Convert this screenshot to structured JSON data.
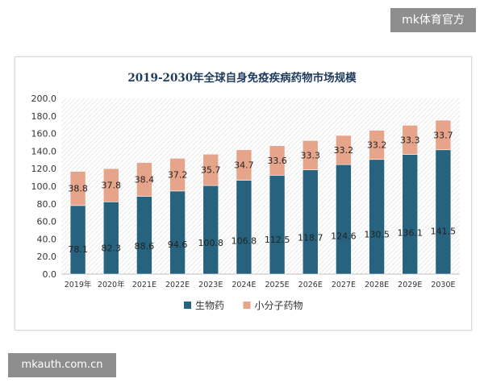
{
  "watermark_top": "mk体育官方",
  "watermark_bottom": "mkauth.com.cn",
  "chart_data": {
    "type": "bar",
    "stacked": true,
    "title": "2019-2030年全球自身免疫疾病药物市场规模",
    "xlabel": "",
    "ylabel": "",
    "categories": [
      "2019年",
      "2020年",
      "2021E",
      "2022E",
      "2023E",
      "2024E",
      "2025E",
      "2026E",
      "2027E",
      "2028E",
      "2029E",
      "2030E"
    ],
    "series": [
      {
        "name": "生物药",
        "color": "#27637e",
        "values": [
          78.1,
          82.3,
          88.6,
          94.6,
          100.8,
          106.8,
          112.5,
          118.7,
          124.6,
          130.5,
          136.1,
          141.5
        ]
      },
      {
        "name": "小分子药物",
        "color": "#e6a48a",
        "values": [
          38.8,
          37.8,
          38.4,
          37.2,
          35.7,
          34.7,
          33.6,
          33.3,
          33.2,
          33.2,
          33.3,
          33.7
        ]
      }
    ],
    "ylim": [
      0,
      200
    ],
    "yticks": [
      "0.0",
      "20.0",
      "40.0",
      "60.0",
      "80.0",
      "100.0",
      "120.0",
      "140.0",
      "160.0",
      "180.0",
      "200.0"
    ],
    "ytick_values": [
      0,
      20,
      40,
      60,
      80,
      100,
      120,
      140,
      160,
      180,
      200
    ],
    "grid": false,
    "background": "hatched",
    "legend_position": "bottom"
  }
}
